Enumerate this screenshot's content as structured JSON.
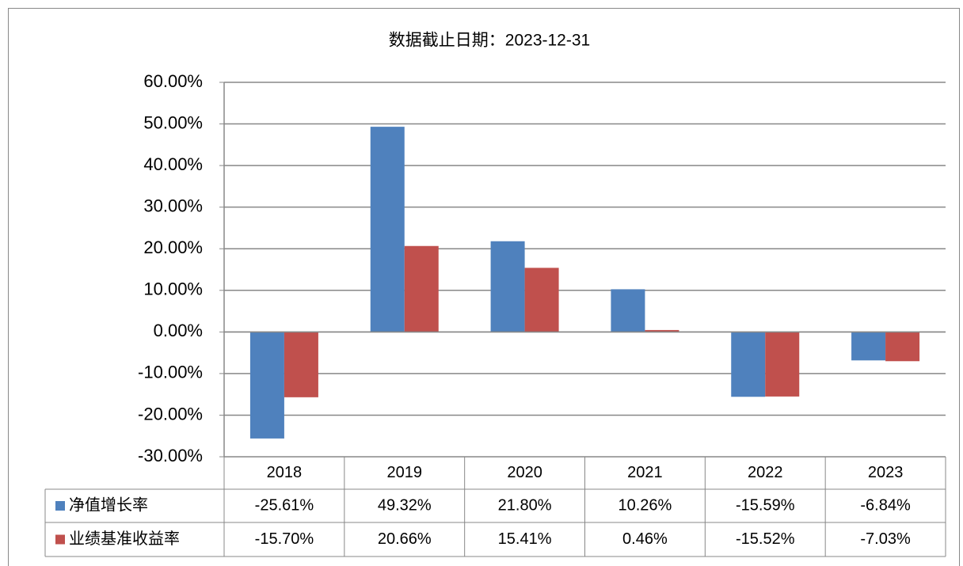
{
  "chart_data": {
    "type": "bar",
    "title": "数据截止日期：2023-12-31",
    "categories": [
      "2018",
      "2019",
      "2020",
      "2021",
      "2022",
      "2023"
    ],
    "series": [
      {
        "name": "净值增长率",
        "color": "#4f81bd",
        "values": [
          -25.61,
          49.32,
          21.8,
          10.26,
          -15.59,
          -6.84
        ],
        "value_labels": [
          "-25.61%",
          "49.32%",
          "21.80%",
          "10.26%",
          "-15.59%",
          "-6.84%"
        ]
      },
      {
        "name": "业绩基准收益率",
        "color": "#c0504d",
        "values": [
          -15.7,
          20.66,
          15.41,
          0.46,
          -15.52,
          -7.03
        ],
        "value_labels": [
          "-15.70%",
          "20.66%",
          "15.41%",
          "0.46%",
          "-15.52%",
          "-7.03%"
        ]
      }
    ],
    "ylim": [
      -30,
      60
    ],
    "yticks": [
      {
        "value": -30,
        "label": "-30.00%"
      },
      {
        "value": -20,
        "label": "-20.00%"
      },
      {
        "value": -10,
        "label": "-10.00%"
      },
      {
        "value": 0,
        "label": "0.00%"
      },
      {
        "value": 10,
        "label": "10.00%"
      },
      {
        "value": 20,
        "label": "20.00%"
      },
      {
        "value": 30,
        "label": "30.00%"
      },
      {
        "value": 40,
        "label": "40.00%"
      },
      {
        "value": 50,
        "label": "50.00%"
      },
      {
        "value": 60,
        "label": "60.00%"
      }
    ],
    "grid": true
  }
}
